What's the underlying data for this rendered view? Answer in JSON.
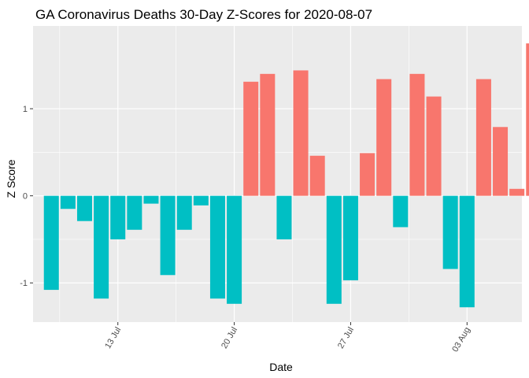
{
  "chart_data": {
    "type": "bar",
    "title": "GA Coronavirus Deaths 30-Day Z-Scores for 2020-08-07",
    "xlabel": "Date",
    "ylabel": "Z Score",
    "ylim": [
      -1.45,
      1.95
    ],
    "y_ticks": [
      -1,
      0,
      1
    ],
    "x_ticks": [
      {
        "label": "13 Jul",
        "day": 13
      },
      {
        "label": "20 Jul",
        "day": 20
      },
      {
        "label": "27 Jul",
        "day": 27
      },
      {
        "label": "03 Aug",
        "day": 34
      }
    ],
    "x_range_days": [
      7.9,
      37.3
    ],
    "series": [
      {
        "name": "Z Score",
        "start_day": 9,
        "values": [
          -1.08,
          -0.15,
          -0.29,
          -1.18,
          -0.5,
          -0.39,
          -0.09,
          -0.91,
          -0.39,
          -0.11,
          -1.18,
          -1.24,
          1.31,
          1.4,
          -0.5,
          1.44,
          0.46,
          -1.24,
          -0.97,
          0.49,
          1.34,
          -0.36,
          1.4,
          1.14,
          -0.84,
          -1.28,
          1.34,
          0.79,
          0.08,
          1.75
        ]
      }
    ],
    "colors": {
      "positive": "#F8766D",
      "negative": "#00BFC4"
    },
    "grid": true
  }
}
